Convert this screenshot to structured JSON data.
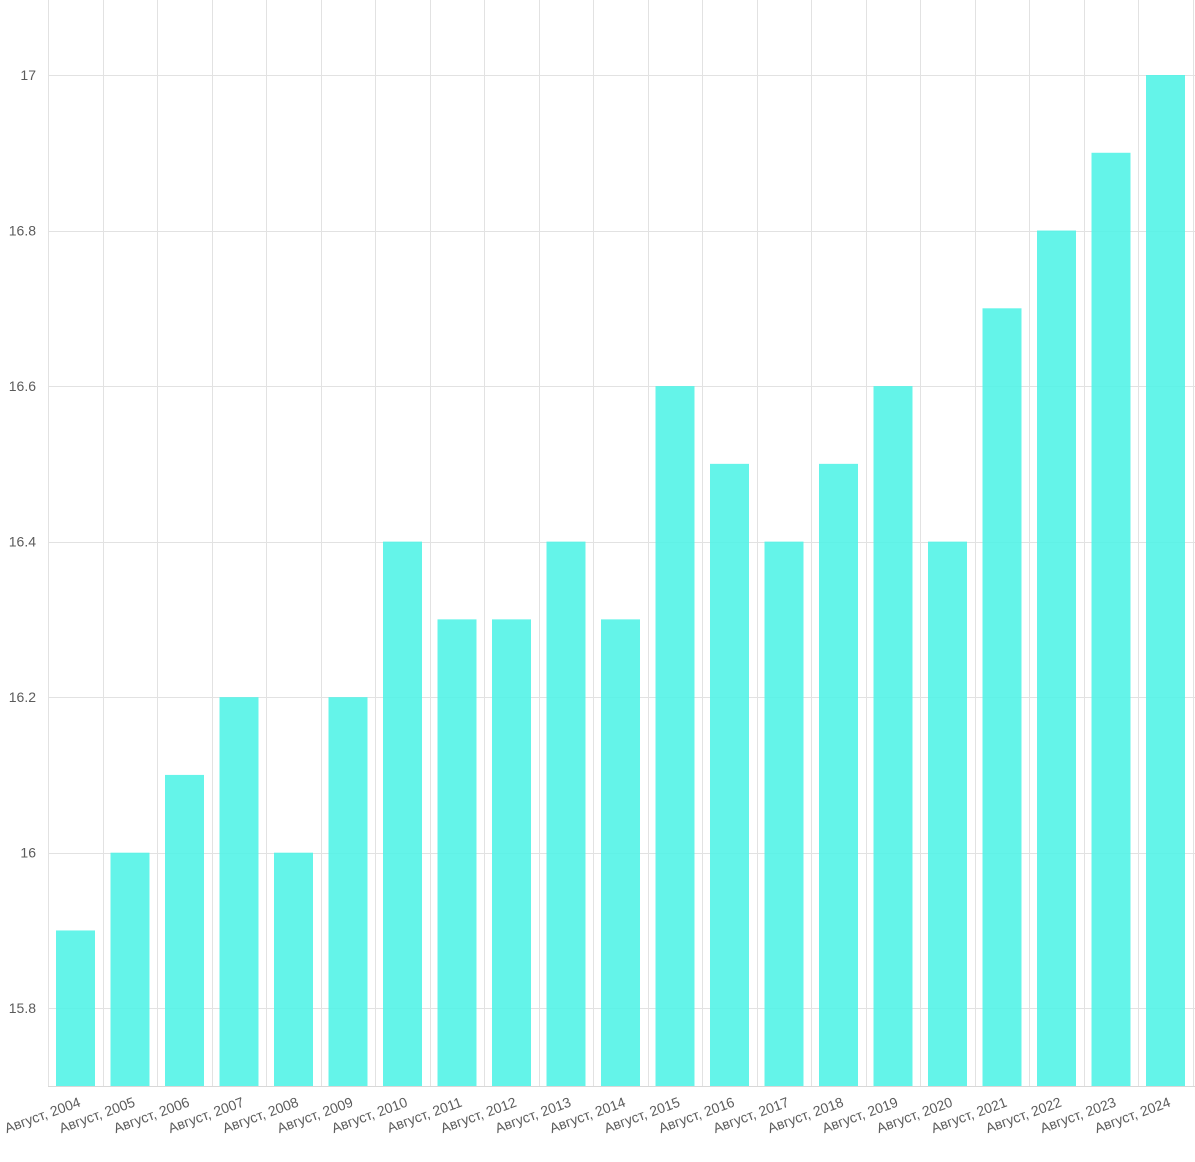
{
  "colors": {
    "bar": "#4ef2e6",
    "grid": "#e2e2e2",
    "tick_text": "#5b5b5b",
    "background": "#ffffff"
  },
  "chart_data": {
    "type": "bar",
    "title": "",
    "xlabel": "",
    "ylabel": "",
    "categories": [
      "Август, 2004",
      "Август, 2005",
      "Август, 2006",
      "Август, 2007",
      "Август, 2008",
      "Август, 2009",
      "Август, 2010",
      "Август, 2011",
      "Август, 2012",
      "Август, 2013",
      "Август, 2014",
      "Август, 2015",
      "Август, 2016",
      "Август, 2017",
      "Август, 2018",
      "Август, 2019",
      "Август, 2020",
      "Август, 2021",
      "Август, 2022",
      "Август, 2023",
      "Август, 2024"
    ],
    "values": [
      15.9,
      16.0,
      16.1,
      16.2,
      16.0,
      16.2,
      16.4,
      16.3,
      16.3,
      16.4,
      16.3,
      16.6,
      16.5,
      16.4,
      16.5,
      16.6,
      16.4,
      16.7,
      16.8,
      16.9,
      17.0
    ],
    "ylim": [
      15.7,
      17.1
    ],
    "yticks": [
      15.8,
      16.0,
      16.2,
      16.4,
      16.6,
      16.8,
      17.0
    ],
    "ytick_labels": [
      "15.8",
      "16",
      "16.2",
      "16.4",
      "16.6",
      "16.8",
      "17"
    ],
    "grid": true,
    "legend": "none"
  }
}
